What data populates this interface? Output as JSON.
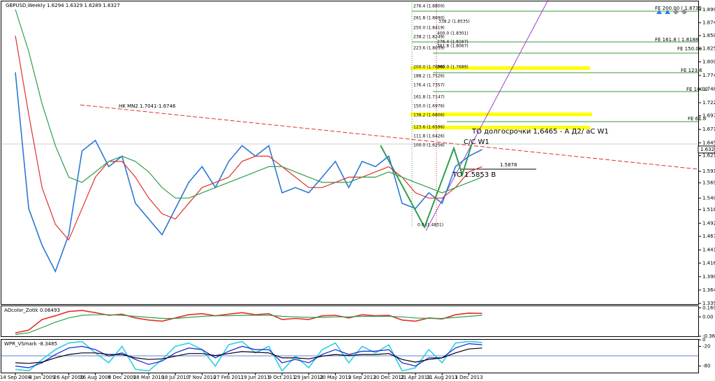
{
  "chart_data": [
    {
      "type": "line",
      "title": "GBPUSD,Weekly  1.6294 1.6329 1.6289 1.6327",
      "categories": [
        "14 Sep 2008",
        null,
        "4 Jan 2009",
        null,
        "26 Apr 2009",
        null,
        "16 Aug 2009",
        null,
        "6 Dec 2009",
        null,
        "28 Mar 2010",
        null,
        "18 Jul 2010",
        null,
        "7 Nov 2010",
        null,
        "27 Feb 2011",
        null,
        "19 Jun 2011",
        null,
        "9 Oct 2011",
        null,
        "29 Jan 2012",
        null,
        "20 May 2012",
        null,
        "9 Sep 2012",
        null,
        "30 Dec 2012",
        null,
        "21 Apr 2013",
        null,
        "11 Aug 2013",
        null,
        "1 Dec 2013",
        null
      ],
      "series": [
        {
          "color": "#2a78d6",
          "values": [
            1.78,
            1.52,
            1.45,
            1.4,
            1.47,
            1.63,
            1.65,
            1.6,
            1.62,
            1.53,
            1.5,
            1.47,
            1.52,
            1.57,
            1.6,
            1.56,
            1.61,
            1.64,
            1.62,
            1.64,
            1.55,
            1.56,
            1.55,
            1.58,
            1.61,
            1.56,
            1.61,
            1.6,
            1.62,
            1.53,
            1.52,
            1.55,
            1.53,
            1.6,
            1.62,
            1.6327
          ]
        },
        {
          "color": "#e0302a",
          "values": [
            1.85,
            1.7,
            1.56,
            1.49,
            1.46,
            1.52,
            1.58,
            1.61,
            1.61,
            1.58,
            1.54,
            1.51,
            1.5,
            1.53,
            1.56,
            1.57,
            1.58,
            1.61,
            1.62,
            1.62,
            1.6,
            1.58,
            1.56,
            1.56,
            1.57,
            1.58,
            1.58,
            1.59,
            1.6,
            1.58,
            1.55,
            1.54,
            1.54,
            1.56,
            1.59,
            1.6
          ]
        },
        {
          "color": "#2e9e4a",
          "values": [
            1.9,
            1.82,
            1.72,
            1.64,
            1.58,
            1.57,
            1.59,
            1.61,
            1.62,
            1.61,
            1.59,
            1.56,
            1.54,
            1.54,
            1.55,
            1.56,
            1.57,
            1.58,
            1.59,
            1.6,
            1.6,
            1.59,
            1.58,
            1.57,
            1.57,
            1.57,
            1.58,
            1.58,
            1.59,
            1.58,
            1.57,
            1.56,
            1.55,
            1.56,
            1.57,
            1.58
          ]
        }
      ],
      "ylim": [
        1.339,
        1.914
      ],
      "yticks": [
        {
          "value": 1.899,
          "label": "1.8990"
        },
        {
          "value": 1.8745,
          "label": "1.8745"
        },
        {
          "value": 1.85,
          "label": "1.8500"
        },
        {
          "value": 1.825,
          "label": "1.8250"
        },
        {
          "value": 1.8,
          "label": "1.8000"
        },
        {
          "value": 1.774,
          "label": "1.7740"
        },
        {
          "value": 1.748,
          "label": "1.7480"
        },
        {
          "value": 1.722,
          "label": "1.7220"
        },
        {
          "value": 1.697,
          "label": "1.6970"
        },
        {
          "value": 1.671,
          "label": "1.6710"
        },
        {
          "value": 1.6455,
          "label": "1.6455"
        },
        {
          "value": 1.621,
          "label": "1.6210"
        },
        {
          "value": 1.591,
          "label": "1.5910"
        },
        {
          "value": 1.569,
          "label": "1.5690"
        },
        {
          "value": 1.54,
          "label": "1.5400"
        },
        {
          "value": 1.518,
          "label": "1.5180"
        },
        {
          "value": 1.492,
          "label": "1.4920"
        },
        {
          "value": 1.467,
          "label": "1.4670"
        },
        {
          "value": 1.441,
          "label": "1.4410"
        },
        {
          "value": 1.416,
          "label": "1.4160"
        },
        {
          "value": 1.39,
          "label": "1.3900"
        },
        1.3645,
        {
          "value": 1.339,
          "label": "1.3390"
        }
      ],
      "last_price": {
        "value": 1.6327,
        "label": "1.6327"
      },
      "annotations": [
        "HK MN2 1.7041-1.6746",
        "ТО долгосрочки 1,6465 - А Д2/ aC W1",
        "C/C W1",
        "1.5878",
        "ТО 1.5853 В",
        "FE 200.00  ( 1.8739",
        "FE 161.8  ( 1.8188",
        "FE 150.00",
        "FE 123.6",
        "FE 100.0",
        "FE 61.8",
        "276.4 (1.8800)",
        "261.8 (1.8690)",
        "250.0 (1.8419)",
        "238.2 (1.8249)",
        "223.6 (1.8039)",
        "200.0 (1.7696)",
        "188.2 (1.7526)",
        "176.4 (1.7357)",
        "161.8 (1.7147)",
        "150.0 (1.6976)",
        "138.2 (1.6806)",
        "123.6 (1.6596)",
        "111.8 (1.6426)",
        "100.0 (1.6256)",
        "338.2 (1.8535)",
        "400.0 (1.8301)",
        "276.4 (1.8167)",
        "361.8 (1.8067)",
        "200.0 (1.7689)",
        "0.0 (1.4831)"
      ]
    },
    {
      "type": "line",
      "title": "AOcolor_Zotik 0.06493",
      "series": [
        {
          "color": "#e0302a",
          "values": [
            -0.3,
            -0.25,
            -0.05,
            0.02,
            0.1,
            0.12,
            0.08,
            0.03,
            0.05,
            -0.02,
            -0.06,
            -0.08,
            -0.02,
            0.04,
            0.06,
            0.02,
            0.05,
            0.08,
            0.04,
            0.06,
            -0.05,
            -0.03,
            -0.05,
            0.02,
            0.03,
            -0.02,
            0.04,
            0.02,
            0.03,
            -0.06,
            -0.08,
            -0.02,
            -0.04,
            0.04,
            0.07,
            0.065
          ]
        },
        {
          "color": "#2e9e4a",
          "values": [
            -0.33,
            -0.3,
            -0.2,
            -0.1,
            -0.02,
            0.03,
            0.04,
            0.04,
            0.03,
            0.01,
            -0.01,
            -0.03,
            -0.03,
            -0.01,
            0.01,
            0.02,
            0.02,
            0.03,
            0.03,
            0.03,
            0.01,
            0,
            -0.01,
            -0.01,
            0,
            0,
            0.01,
            0.01,
            0.01,
            0,
            -0.02,
            -0.03,
            -0.03,
            -0.01,
            0.01,
            0.03
          ]
        }
      ],
      "ylim": [
        -0.36358,
        0.2
      ],
      "yticks": [
        0.16945,
        {
          "value": 0,
          "label": "0.00"
        },
        -0.36358
      ]
    },
    {
      "type": "line",
      "title": "WPR_VSmark -8.3485",
      "series": [
        {
          "color": "#28d0e0",
          "values": [
            -90,
            -95,
            -60,
            -30,
            -10,
            -5,
            -40,
            -70,
            -20,
            -90,
            -95,
            -60,
            -20,
            -10,
            -30,
            -80,
            -15,
            -5,
            -40,
            -20,
            -95,
            -50,
            -85,
            -30,
            -10,
            -70,
            -20,
            -40,
            -15,
            -95,
            -85,
            -30,
            -70,
            -10,
            -5,
            -8.3485
          ]
        },
        {
          "color": "#1020d0",
          "values": [
            -80,
            -85,
            -70,
            -45,
            -25,
            -20,
            -30,
            -50,
            -40,
            -60,
            -75,
            -65,
            -40,
            -25,
            -30,
            -55,
            -35,
            -20,
            -30,
            -30,
            -70,
            -60,
            -70,
            -45,
            -30,
            -45,
            -35,
            -35,
            -30,
            -70,
            -80,
            -55,
            -55,
            -25,
            -12,
            -15
          ]
        },
        {
          "color": "#000000",
          "values": [
            -70,
            -72,
            -68,
            -55,
            -45,
            -40,
            -40,
            -45,
            -45,
            -55,
            -60,
            -58,
            -50,
            -42,
            -42,
            -48,
            -42,
            -36,
            -38,
            -40,
            -55,
            -55,
            -58,
            -50,
            -45,
            -48,
            -45,
            -45,
            -42,
            -60,
            -68,
            -60,
            -55,
            -40,
            -28,
            -25
          ]
        }
      ],
      "ylim": [
        -100,
        0
      ],
      "yticks": [
        0,
        -20,
        -80
      ]
    }
  ]
}
